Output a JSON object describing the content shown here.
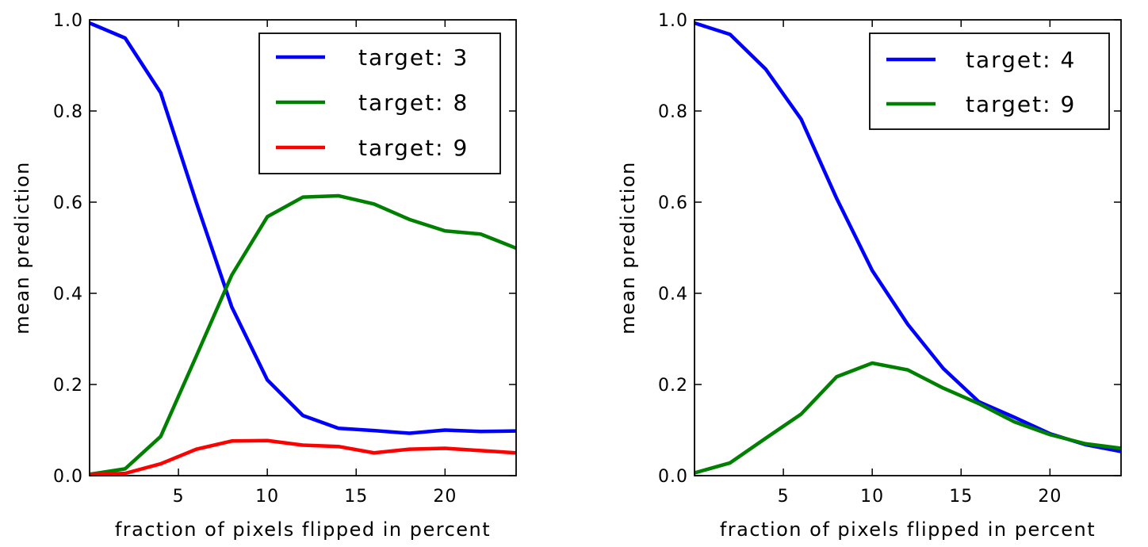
{
  "chart_data": [
    {
      "type": "line",
      "xlabel": "fraction of pixels flipped in percent",
      "ylabel": "mean prediction",
      "xlim": [
        0,
        24
      ],
      "ylim": [
        0,
        1.0
      ],
      "xticks": [
        5,
        10,
        15,
        20
      ],
      "xtick_labels": [
        "5",
        "10",
        "15",
        "20"
      ],
      "yticks": [
        0.0,
        0.2,
        0.4,
        0.6,
        0.8,
        1.0
      ],
      "ytick_labels": [
        "0.0",
        "0.2",
        "0.4",
        "0.6",
        "0.8",
        "1.0"
      ],
      "legend_position": "top-right",
      "grid": false,
      "x": [
        0,
        2,
        4,
        6,
        8,
        10,
        12,
        14,
        16,
        18,
        20,
        22,
        24
      ],
      "series": [
        {
          "name": "target: 3",
          "color": "#0000ff",
          "values": [
            0.993,
            0.96,
            0.84,
            0.6,
            0.37,
            0.21,
            0.132,
            0.104,
            0.099,
            0.093,
            0.1,
            0.097,
            0.098
          ]
        },
        {
          "name": "target: 8",
          "color": "#008000",
          "values": [
            0.003,
            0.015,
            0.086,
            0.262,
            0.44,
            0.568,
            0.611,
            0.614,
            0.596,
            0.562,
            0.537,
            0.53,
            0.499
          ]
        },
        {
          "name": "target: 9",
          "color": "#ff0000",
          "values": [
            0.002,
            0.005,
            0.026,
            0.058,
            0.076,
            0.077,
            0.067,
            0.064,
            0.05,
            0.058,
            0.06,
            0.055,
            0.05
          ]
        }
      ]
    },
    {
      "type": "line",
      "xlabel": "fraction of pixels flipped in percent",
      "ylabel": "mean prediction",
      "xlim": [
        0,
        24
      ],
      "ylim": [
        0,
        1.0
      ],
      "xticks": [
        5,
        10,
        15,
        20
      ],
      "xtick_labels": [
        "5",
        "10",
        "15",
        "20"
      ],
      "yticks": [
        0.0,
        0.2,
        0.4,
        0.6,
        0.8,
        1.0
      ],
      "ytick_labels": [
        "0.0",
        "0.2",
        "0.4",
        "0.6",
        "0.8",
        "1.0"
      ],
      "legend_position": "top-right",
      "grid": false,
      "x": [
        0,
        2,
        4,
        6,
        8,
        10,
        12,
        14,
        16,
        18,
        20,
        22,
        24
      ],
      "series": [
        {
          "name": "target: 4",
          "color": "#0000ff",
          "values": [
            0.993,
            0.968,
            0.892,
            0.782,
            0.608,
            0.45,
            0.332,
            0.235,
            0.162,
            0.128,
            0.092,
            0.068,
            0.053
          ]
        },
        {
          "name": "target: 9",
          "color": "#008000",
          "values": [
            0.006,
            0.028,
            0.082,
            0.135,
            0.217,
            0.247,
            0.232,
            0.192,
            0.158,
            0.118,
            0.09,
            0.07,
            0.06
          ]
        }
      ]
    }
  ]
}
